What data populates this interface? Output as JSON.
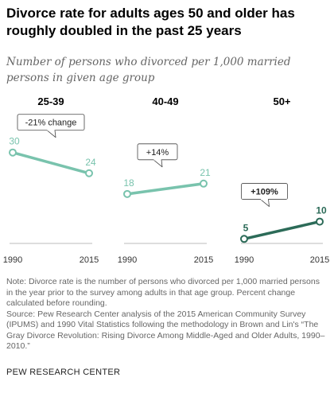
{
  "title": "Divorce rate for adults ages 50 and older has roughly doubled in the past 25 years",
  "subtitle": "Number of persons who divorced per 1,000 married persons in given age group",
  "chart_data": {
    "type": "line",
    "panels": [
      {
        "label": "25-39",
        "x": [
          "1990",
          "2015"
        ],
        "values": [
          30,
          24
        ],
        "annotation": "-21% change",
        "color": "#79c3ad"
      },
      {
        "label": "40-49",
        "x": [
          "1990",
          "2015"
        ],
        "values": [
          18,
          21
        ],
        "annotation": "+14%",
        "color": "#79c3ad"
      },
      {
        "label": "50+",
        "x": [
          "1990",
          "2015"
        ],
        "values": [
          5,
          10
        ],
        "annotation": "+109%",
        "color": "#2c6b58"
      }
    ],
    "ylim": [
      0,
      35
    ]
  },
  "notes": {
    "note": "Note: Divorce rate is the number of persons who divorced per 1,000 married persons in the year prior to the survey among adults in that age group. Percent change calculated before rounding.",
    "source": "Source: Pew Research Center analysis of the 2015 American Community Survey (IPUMS) and 1990 Vital Statistics following the methodology in Brown and Lin's “The Gray Divorce Revolution: Rising Divorce Among Middle-Aged and Older Adults, 1990–2010.”"
  },
  "footer": "PEW RESEARCH CENTER"
}
